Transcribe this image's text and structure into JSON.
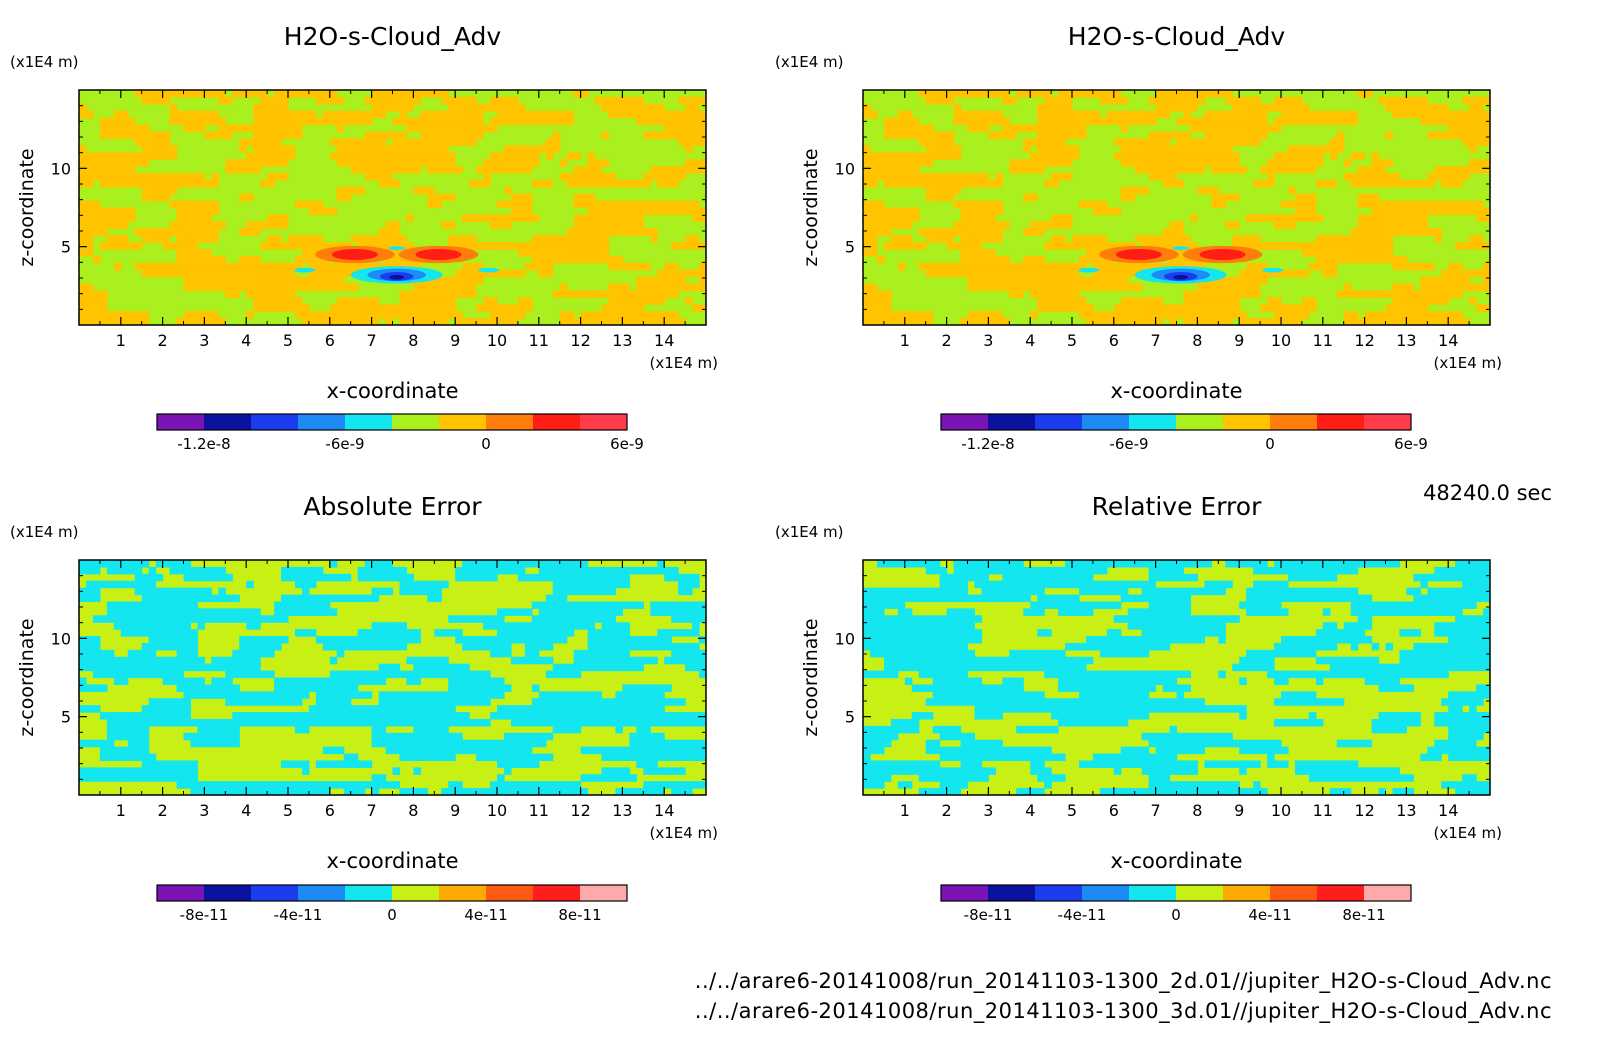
{
  "page": {
    "timestamp": "48240.0 sec",
    "files": [
      "../../arare6-20141008/run_20141103-1300_2d.01//jupiter_H2O-s-Cloud_Adv.nc",
      "../../arare6-20141008/run_20141103-1300_3d.01//jupiter_H2O-s-Cloud_Adv.nc"
    ]
  },
  "colors": {
    "palette": [
      "#7a14b4",
      "#0a12a0",
      "#1c3cf0",
      "#1e8af5",
      "#14e6f0",
      "#aaf01e",
      "#ffc300",
      "#ff7d0a",
      "#ff1e14",
      "#ff3c4b"
    ],
    "error_palette": [
      "#7a14b4",
      "#0a12a0",
      "#1c3cf0",
      "#1e8af5",
      "#14e6f0",
      "#c8f014",
      "#ffaa00",
      "#ff5a14",
      "#ff1e1e",
      "#ffaaaa"
    ]
  },
  "chart_data": [
    {
      "type": "heatmap",
      "title": "H2O-s-Cloud_Adv",
      "xlabel": "x-coordinate",
      "ylabel": "z-coordinate",
      "x_unit": "(x1E4 m)",
      "y_unit": "(x1E4 m)",
      "xlim": [
        0,
        15
      ],
      "ylim": [
        0,
        15
      ],
      "xticks": [
        "1",
        "2",
        "3",
        "4",
        "5",
        "6",
        "7",
        "8",
        "9",
        "10",
        "11",
        "12",
        "13",
        "14"
      ],
      "yticks": [
        "5",
        "10"
      ],
      "colorbar": {
        "levels": [
          -1.4e-08,
          -1.2e-08,
          -1e-08,
          -8e-09,
          -6e-09,
          -4e-09,
          -2e-09,
          0,
          2e-09,
          4e-09,
          6e-09
        ],
        "tick_labels": [
          "-1.2e-8",
          "-6e-9",
          "0",
          "6e-9"
        ],
        "tick_values": [
          -1.2e-08,
          -6e-09,
          0,
          6e-09
        ]
      },
      "field": "cloud"
    },
    {
      "type": "heatmap",
      "title": "H2O-s-Cloud_Adv",
      "xlabel": "x-coordinate",
      "ylabel": "z-coordinate",
      "x_unit": "(x1E4 m)",
      "y_unit": "(x1E4 m)",
      "xlim": [
        0,
        15
      ],
      "ylim": [
        0,
        15
      ],
      "xticks": [
        "1",
        "2",
        "3",
        "4",
        "5",
        "6",
        "7",
        "8",
        "9",
        "10",
        "11",
        "12",
        "13",
        "14"
      ],
      "yticks": [
        "5",
        "10"
      ],
      "colorbar": {
        "levels": [
          -1.4e-08,
          -1.2e-08,
          -1e-08,
          -8e-09,
          -6e-09,
          -4e-09,
          -2e-09,
          0,
          2e-09,
          4e-09,
          6e-09
        ],
        "tick_labels": [
          "-1.2e-8",
          "-6e-9",
          "0",
          "6e-9"
        ],
        "tick_values": [
          -1.2e-08,
          -6e-09,
          0,
          6e-09
        ]
      },
      "field": "cloud"
    },
    {
      "type": "heatmap",
      "title": "Absolute Error",
      "xlabel": "x-coordinate",
      "ylabel": "z-coordinate",
      "x_unit": "(x1E4 m)",
      "y_unit": "(x1E4 m)",
      "xlim": [
        0,
        15
      ],
      "ylim": [
        0,
        15
      ],
      "xticks": [
        "1",
        "2",
        "3",
        "4",
        "5",
        "6",
        "7",
        "8",
        "9",
        "10",
        "11",
        "12",
        "13",
        "14"
      ],
      "yticks": [
        "5",
        "10"
      ],
      "colorbar": {
        "levels": [
          -1e-10,
          -8e-11,
          -6e-11,
          -4e-11,
          -2e-11,
          0,
          2e-11,
          4e-11,
          6e-11,
          8e-11,
          1e-10
        ],
        "tick_labels": [
          "-8e-11",
          "-4e-11",
          "0",
          "4e-11",
          "8e-11"
        ],
        "tick_values": [
          -8e-11,
          -4e-11,
          0,
          4e-11,
          8e-11
        ]
      },
      "field": "error"
    },
    {
      "type": "heatmap",
      "title": "Relative Error",
      "xlabel": "x-coordinate",
      "ylabel": "z-coordinate",
      "x_unit": "(x1E4 m)",
      "y_unit": "(x1E4 m)",
      "xlim": [
        0,
        15
      ],
      "ylim": [
        0,
        15
      ],
      "xticks": [
        "1",
        "2",
        "3",
        "4",
        "5",
        "6",
        "7",
        "8",
        "9",
        "10",
        "11",
        "12",
        "13",
        "14"
      ],
      "yticks": [
        "5",
        "10"
      ],
      "colorbar": {
        "levels": [
          -1e-10,
          -8e-11,
          -6e-11,
          -4e-11,
          -2e-11,
          0,
          2e-11,
          4e-11,
          6e-11,
          8e-11,
          1e-10
        ],
        "tick_labels": [
          "-8e-11",
          "-4e-11",
          "0",
          "4e-11",
          "8e-11"
        ],
        "tick_values": [
          -8e-11,
          -4e-11,
          0,
          4e-11,
          8e-11
        ]
      },
      "field": "error"
    }
  ]
}
